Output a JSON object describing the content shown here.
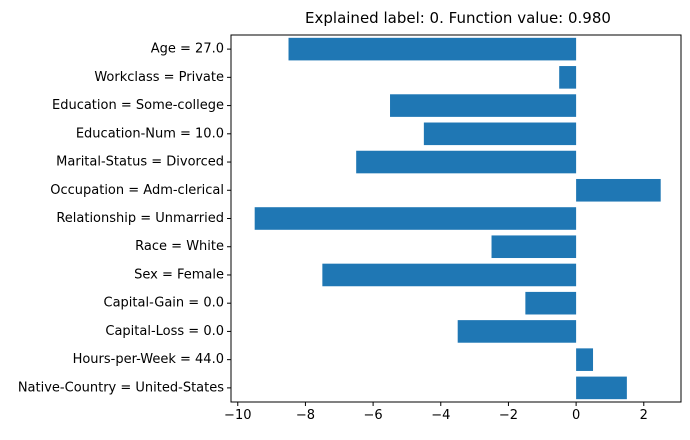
{
  "chart_data": {
    "type": "bar",
    "orientation": "horizontal",
    "title": "Explained label: 0. Function value: 0.980",
    "xlabel": "",
    "ylabel": "",
    "categories": [
      "Age = 27.0",
      "Workclass = Private",
      "Education = Some-college",
      "Education-Num = 10.0",
      "Marital-Status = Divorced",
      "Occupation = Adm-clerical",
      "Relationship = Unmarried",
      "Race = White",
      "Sex = Female",
      "Capital-Gain = 0.0",
      "Capital-Loss = 0.0",
      "Hours-per-Week = 44.0",
      "Native-Country = United-States"
    ],
    "values": [
      -8.5,
      -0.5,
      -5.5,
      -4.5,
      -6.5,
      2.5,
      -9.5,
      -2.5,
      -7.5,
      -1.5,
      -3.5,
      0.5,
      1.5
    ],
    "xlim": [
      -10.2,
      3.1
    ],
    "xticks": [
      -10,
      -8,
      -6,
      -4,
      -2,
      0,
      2
    ],
    "xtick_labels": [
      "−10",
      "−8",
      "−6",
      "−4",
      "−2",
      "0",
      "2"
    ],
    "grid": false,
    "bar_color": "#1f77b4"
  }
}
